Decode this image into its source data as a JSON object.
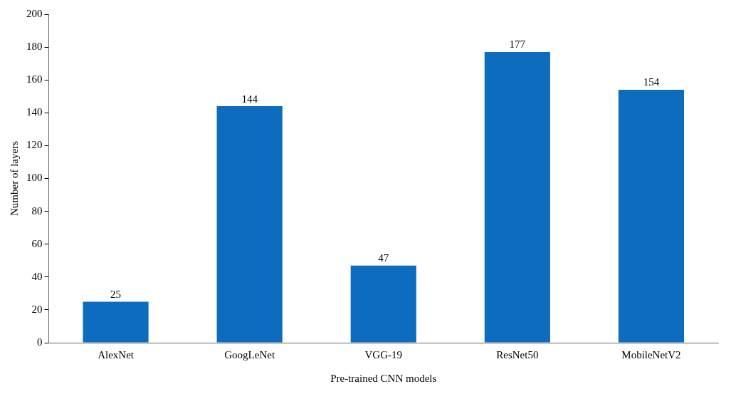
{
  "chart_data": {
    "type": "bar",
    "xlabel": "Pre-trained CNN models",
    "ylabel": "Number of layers",
    "categories": [
      "AlexNet",
      "GoogLeNet",
      "VGG-19",
      "ResNet50",
      "MobileNetV2"
    ],
    "values": [
      25,
      144,
      47,
      177,
      154
    ],
    "color": "#0e6cbf",
    "ylim": [
      0,
      200
    ],
    "yticks": [
      0,
      20,
      40,
      60,
      80,
      100,
      120,
      140,
      160,
      180,
      200
    ],
    "grid": false,
    "data_labels": true,
    "legend": false
  }
}
